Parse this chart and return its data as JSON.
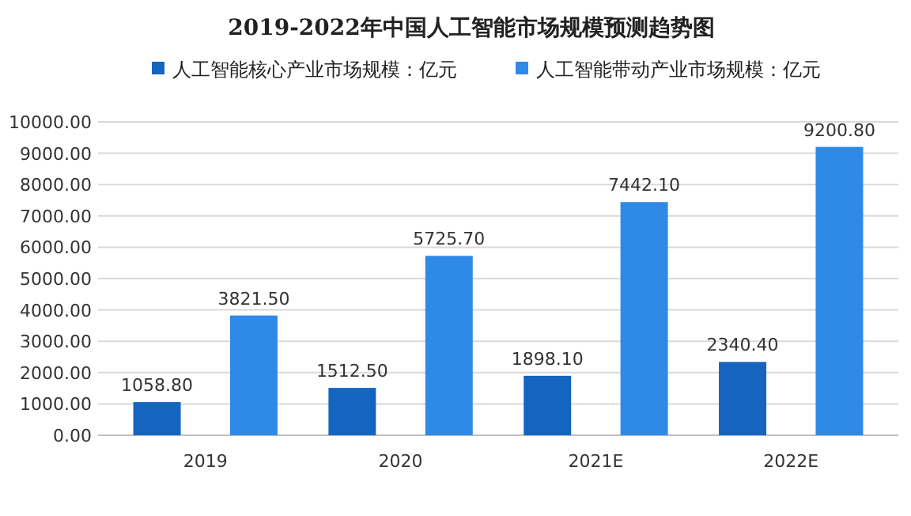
{
  "chart_data": {
    "type": "bar",
    "title": "2019-2022年中国人工智能市场规模预测趋势图",
    "categories": [
      "2019",
      "2020",
      "2021E",
      "2022E"
    ],
    "series": [
      {
        "name": "人工智能核心产业市场规模：亿元",
        "color": "#1565c0",
        "values": [
          1058.8,
          1512.5,
          1898.1,
          2340.4
        ],
        "value_labels": [
          "1058.80",
          "1512.50",
          "1898.10",
          "2340.40"
        ]
      },
      {
        "name": "人工智能带动产业市场规模：亿元",
        "color": "#2e8ae6",
        "values": [
          3821.5,
          5725.7,
          7442.1,
          9200.8
        ],
        "value_labels": [
          "3821.50",
          "5725.70",
          "7442.10",
          "9200.80"
        ]
      }
    ],
    "ylim": [
      0,
      10000
    ],
    "yticks": [
      {
        "value": 0,
        "label": "0.00"
      },
      {
        "value": 1000,
        "label": "1000.00"
      },
      {
        "value": 2000,
        "label": "2000.00"
      },
      {
        "value": 3000,
        "label": "3000.00"
      },
      {
        "value": 4000,
        "label": "4000.00"
      },
      {
        "value": 5000,
        "label": "5000.00"
      },
      {
        "value": 6000,
        "label": "6000.00"
      },
      {
        "value": 7000,
        "label": "7000.00"
      },
      {
        "value": 8000,
        "label": "8000.00"
      },
      {
        "value": 9000,
        "label": "9000.00"
      },
      {
        "value": 10000,
        "label": "10000.00"
      }
    ],
    "grid": "y",
    "legend": "top"
  }
}
